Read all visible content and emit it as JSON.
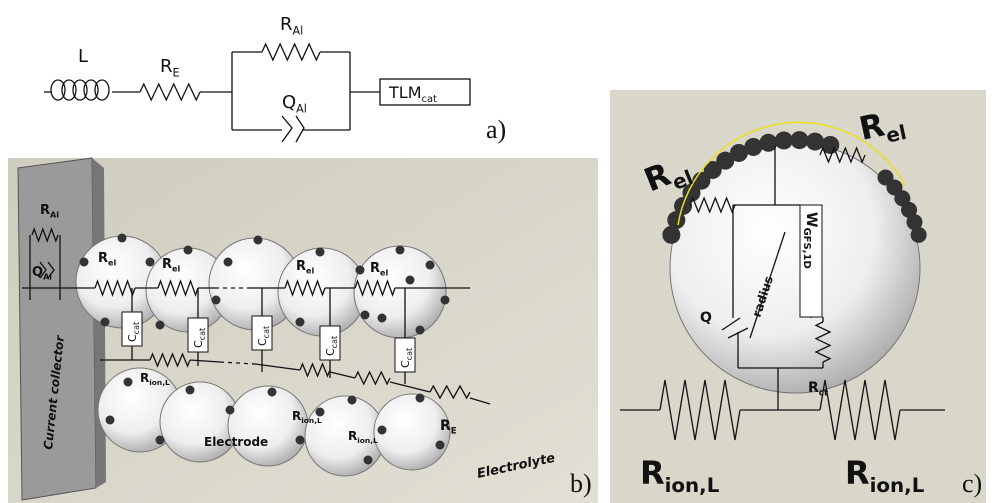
{
  "panel_a": {
    "inductor": "L",
    "r_e": {
      "main": "R",
      "sub": "E"
    },
    "r_al": {
      "main": "R",
      "sub": "Al"
    },
    "q_al": {
      "main": "Q",
      "sub": "Al"
    },
    "tlm": {
      "main": "TLM",
      "sub": "cat"
    },
    "tag": "a)"
  },
  "panel_b": {
    "r_al": {
      "main": "R",
      "sub": "Al"
    },
    "q_al": {
      "main": "Q",
      "sub": "Al"
    },
    "r_el": [
      {
        "main": "R",
        "sub": "el"
      },
      {
        "main": "R",
        "sub": "el"
      },
      {
        "main": "R",
        "sub": "el"
      },
      {
        "main": "R",
        "sub": "el"
      }
    ],
    "c_cat": [
      {
        "main": "C",
        "sub": "cat"
      },
      {
        "main": "C",
        "sub": "cat"
      },
      {
        "main": "C",
        "sub": "cat"
      },
      {
        "main": "C",
        "sub": "cat"
      },
      {
        "main": "C",
        "sub": "cat"
      }
    ],
    "r_ion": [
      {
        "main": "R",
        "sub": "ion,L"
      },
      {
        "main": "R",
        "sub": "ion,L"
      },
      {
        "main": "R",
        "sub": "ion,L"
      }
    ],
    "r_e": {
      "main": "R",
      "sub": "E"
    },
    "current_collector": "Current collector",
    "electrode": "Electrode",
    "electrolyte": "Electrolyte",
    "tag": "b)"
  },
  "panel_c": {
    "r_el": [
      {
        "main": "R",
        "sub": "el"
      },
      {
        "main": "R",
        "sub": "el"
      }
    ],
    "w": {
      "main": "W",
      "sub": "GFS,1D"
    },
    "radius": "radius",
    "q": "Q",
    "r_ct": {
      "main": "R",
      "sub": "ct"
    },
    "r_ion": [
      {
        "main": "R",
        "sub": "ion,L"
      },
      {
        "main": "R",
        "sub": "ion,L"
      }
    ],
    "tag": "c)"
  }
}
